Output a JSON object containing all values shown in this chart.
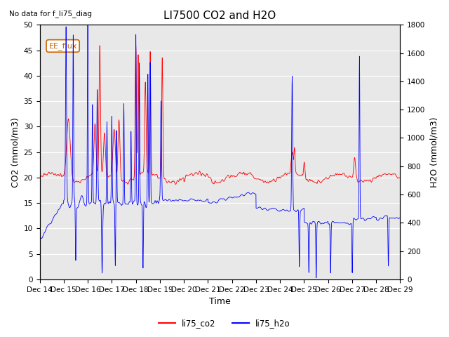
{
  "title": "LI7500 CO2 and H2O",
  "suptitle": "No data for f_li75_diag",
  "xlabel": "Time",
  "ylabel_left": "CO2 (mmol/m3)",
  "ylabel_right": "H2O (mmol/m3)",
  "ylim_left": [
    0,
    50
  ],
  "ylim_right": [
    0,
    1800
  ],
  "yticks_left": [
    0,
    5,
    10,
    15,
    20,
    25,
    30,
    35,
    40,
    45,
    50
  ],
  "yticks_right": [
    0,
    200,
    400,
    600,
    800,
    1000,
    1200,
    1400,
    1600,
    1800
  ],
  "xticklabels": [
    "Dec 14",
    "Dec 15",
    "Dec 16",
    "Dec 17",
    "Dec 18",
    "Dec 19",
    "Dec 20",
    "Dec 21",
    "Dec 22",
    "Dec 23",
    "Dec 24",
    "Dec 25",
    "Dec 26",
    "Dec 27",
    "Dec 28",
    "Dec 29"
  ],
  "legend_labels": [
    "li75_co2",
    "li75_h2o"
  ],
  "color_co2": "red",
  "color_h2o": "blue",
  "annotation_text": "EE_flux",
  "background_color": "#e8e8e8",
  "grid_color": "white",
  "title_fontsize": 11,
  "axis_label_fontsize": 9,
  "tick_fontsize": 7.5
}
